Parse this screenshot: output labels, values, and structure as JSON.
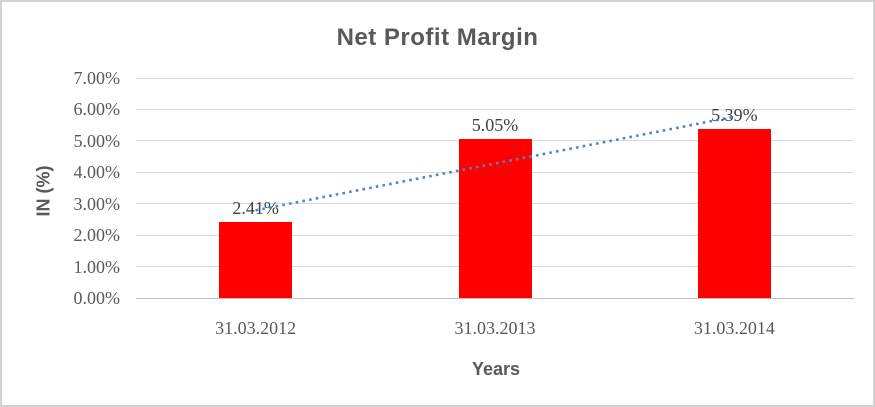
{
  "chart_data": {
    "type": "bar",
    "title": "Net Profit Margin",
    "xlabel": "Years",
    "ylabel": "IN (%)",
    "categories": [
      "31.03.2012",
      "31.03.2013",
      "31.03.2014"
    ],
    "series": [
      {
        "name": "Net Profit Margin",
        "values": [
          2.41,
          5.05,
          5.39
        ]
      }
    ],
    "data_labels": [
      "2.41%",
      "5.05%",
      "5.39%"
    ],
    "y_ticks": [
      {
        "value": 0,
        "label": "0.00%"
      },
      {
        "value": 1,
        "label": "1.00%"
      },
      {
        "value": 2,
        "label": "2.00%"
      },
      {
        "value": 3,
        "label": "3.00%"
      },
      {
        "value": 4,
        "label": "4.00%"
      },
      {
        "value": 5,
        "label": "5.00%"
      },
      {
        "value": 6,
        "label": "6.00%"
      },
      {
        "value": 7,
        "label": "7.00%"
      }
    ],
    "ylim": [
      0,
      7
    ],
    "grid": true,
    "legend": "none",
    "trendline": {
      "type": "linear",
      "style": "dotted",
      "start_value": 2.79,
      "end_value": 5.77
    },
    "colors": {
      "bar": "#ff0000",
      "gridline": "#d9d9d9",
      "axis_line": "#c0c0c0",
      "tick_text": "#595959",
      "category_text": "#595959",
      "data_label_text": "#404040",
      "title_text": "#595959",
      "axis_title_text": "#595959",
      "trendline": "#4e86c8",
      "frame_border": "#d2d2d2"
    }
  }
}
